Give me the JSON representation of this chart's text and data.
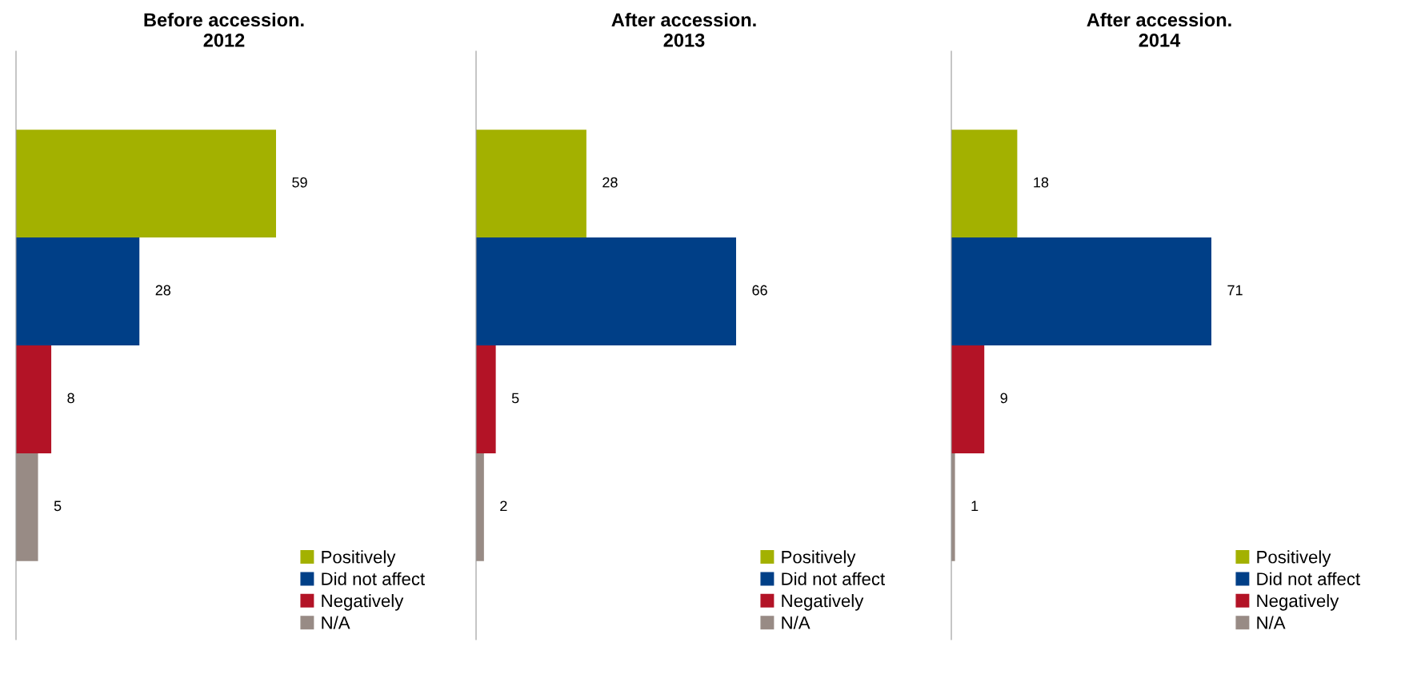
{
  "chart_data": [
    {
      "type": "bar",
      "orientation": "horizontal",
      "title": "Before accession.\n2012",
      "categories": [
        null
      ],
      "data_labels": true,
      "legend": "bottom right",
      "tick_labels": false,
      "series": [
        {
          "name": "Positively",
          "color": "#a3b100",
          "values": [
            59
          ]
        },
        {
          "name": "Did not affect",
          "color": "#003f87",
          "values": [
            28
          ]
        },
        {
          "name": "Negatively",
          "color": "#b31326",
          "values": [
            8
          ]
        },
        {
          "name": "N/A",
          "color": "#988b85",
          "values": [
            5
          ]
        }
      ]
    },
    {
      "type": "bar",
      "orientation": "horizontal",
      "title": "After accession.\n2013",
      "categories": [
        null
      ],
      "data_labels": true,
      "legend": "bottom right",
      "tick_labels": false,
      "series": [
        {
          "name": "Positively",
          "color": "#a3b100",
          "values": [
            28
          ]
        },
        {
          "name": "Did not affect",
          "color": "#003f87",
          "values": [
            66
          ]
        },
        {
          "name": "Negatively",
          "color": "#b31326",
          "values": [
            5
          ]
        },
        {
          "name": "N/A",
          "color": "#988b85",
          "values": [
            2
          ]
        }
      ]
    },
    {
      "type": "bar",
      "orientation": "horizontal",
      "title": "After accession.\n2014",
      "categories": [
        null
      ],
      "data_labels": true,
      "legend": "bottom right",
      "tick_labels": false,
      "series": [
        {
          "name": "Positively",
          "color": "#a3b100",
          "values": [
            18
          ]
        },
        {
          "name": "Did not affect",
          "color": "#003f87",
          "values": [
            71
          ]
        },
        {
          "name": "Negatively",
          "color": "#b31326",
          "values": [
            9
          ]
        },
        {
          "name": "N/A",
          "color": "#988b85",
          "values": [
            1
          ]
        }
      ]
    }
  ]
}
